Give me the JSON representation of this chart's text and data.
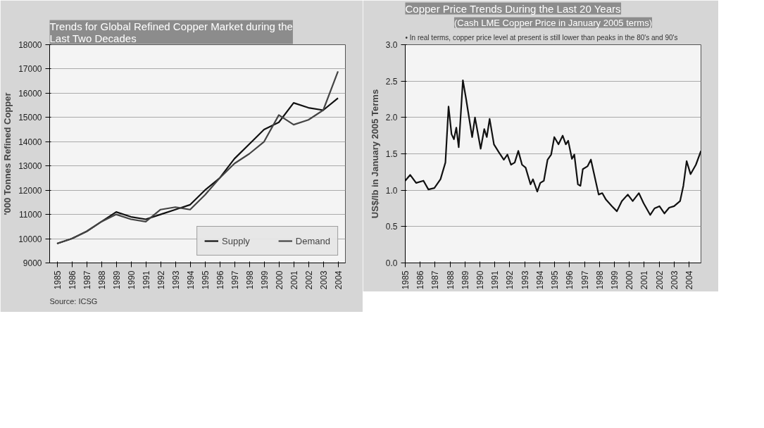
{
  "chart_data": [
    {
      "type": "line",
      "title": "Trends for Global Refined Copper Market during the Last Two Decades",
      "ylabel": "'000 Tonnes Refined Copper",
      "categories": [
        "1985",
        "1986",
        "1987",
        "1988",
        "1989",
        "1990",
        "1991",
        "1992",
        "1993",
        "1994",
        "1995",
        "1996",
        "1997",
        "1998",
        "1999",
        "2000",
        "2001",
        "2002",
        "2003",
        "2004"
      ],
      "series": [
        {
          "name": "Supply",
          "color": "#111111",
          "values": [
            9800,
            10000,
            10300,
            10700,
            11100,
            10900,
            10800,
            11000,
            11200,
            11400,
            12000,
            12500,
            13300,
            13900,
            14500,
            14800,
            15600,
            15400,
            15300,
            15800
          ]
        },
        {
          "name": "Demand",
          "color": "#444444",
          "values": [
            9800,
            10000,
            10300,
            10700,
            11000,
            10800,
            10700,
            11200,
            11300,
            11200,
            11800,
            12500,
            13100,
            13500,
            14000,
            15100,
            14700,
            14900,
            15300,
            16900
          ]
        }
      ],
      "ylim": [
        9000,
        18000
      ],
      "yticks": [
        9000,
        10000,
        11000,
        12000,
        13000,
        14000,
        15000,
        16000,
        17000,
        18000
      ],
      "grid": "y",
      "legend": "bottom right",
      "line_style": "solid",
      "annotations": [
        "Source: ICSG"
      ]
    },
    {
      "type": "line",
      "title": "Copper Price Trends During the Last 20 Years",
      "subtitle": "(Cash LME Copper Price in January 2005 terms)",
      "ylabel": "US$/lb in January 2005 Terms",
      "series": [
        {
          "color": "#111111",
          "x": [
            1985.0,
            1985.33,
            1985.73,
            1986.22,
            1986.55,
            1986.95,
            1987.36,
            1987.69,
            1987.9,
            1988.1,
            1988.26,
            1988.42,
            1988.58,
            1988.86,
            1989.07,
            1989.48,
            1989.67,
            1990.05,
            1990.29,
            1990.46,
            1990.65,
            1990.94,
            1991.27,
            1991.6,
            1991.84,
            1992.08,
            1992.33,
            1992.57,
            1992.82,
            1993.06,
            1993.39,
            1993.55,
            1993.84,
            1994.04,
            1994.28,
            1994.53,
            1994.77,
            1994.98,
            1995.26,
            1995.54,
            1995.75,
            1995.91,
            1996.16,
            1996.32,
            1996.56,
            1996.73,
            1996.89,
            1997.21,
            1997.43,
            1997.7,
            1997.95,
            1998.19,
            1998.44,
            1998.84,
            1999.17,
            1999.5,
            1999.9,
            2000.23,
            2000.64,
            2000.96,
            2001.4,
            2001.69,
            2002.02,
            2002.35,
            2002.67,
            2003.0,
            2003.4,
            2003.62,
            2003.84,
            2004.1,
            2004.46,
            2004.8
          ],
          "values": [
            1.13,
            1.21,
            1.1,
            1.13,
            1.01,
            1.03,
            1.15,
            1.38,
            2.15,
            1.77,
            1.7,
            1.86,
            1.59,
            2.51,
            2.26,
            1.73,
            2.0,
            1.57,
            1.84,
            1.73,
            1.98,
            1.63,
            1.52,
            1.42,
            1.49,
            1.35,
            1.38,
            1.54,
            1.35,
            1.31,
            1.08,
            1.15,
            0.98,
            1.1,
            1.13,
            1.42,
            1.49,
            1.73,
            1.63,
            1.75,
            1.63,
            1.68,
            1.43,
            1.49,
            1.08,
            1.06,
            1.29,
            1.33,
            1.42,
            1.17,
            0.94,
            0.96,
            0.87,
            0.78,
            0.71,
            0.85,
            0.94,
            0.85,
            0.96,
            0.82,
            0.66,
            0.75,
            0.78,
            0.68,
            0.76,
            0.78,
            0.85,
            1.06,
            1.4,
            1.22,
            1.35,
            1.54
          ]
        }
      ],
      "xlim": [
        1985,
        2004.8
      ],
      "xticks": [
        {
          "value": 1985,
          "label": "1985"
        },
        {
          "value": 1986,
          "label": "1986"
        },
        {
          "value": 1987,
          "label": "1987"
        },
        {
          "value": 1988,
          "label": "1988"
        },
        {
          "value": 1989,
          "label": "1989"
        },
        {
          "value": 1990,
          "label": "1990"
        },
        {
          "value": 1991,
          "label": "1991"
        },
        {
          "value": 1992,
          "label": "1992"
        },
        {
          "value": 1993,
          "label": "1993"
        },
        {
          "value": 1994,
          "label": "1994"
        },
        {
          "value": 1995,
          "label": "1995"
        },
        {
          "value": 1996,
          "label": "1996"
        },
        {
          "value": 1997,
          "label": "1997"
        },
        {
          "value": 1998,
          "label": "1998"
        },
        {
          "value": 1999,
          "label": "1999"
        },
        {
          "value": 2000,
          "label": "2000"
        },
        {
          "value": 2001,
          "label": "2001"
        },
        {
          "value": 2002,
          "label": "2002"
        },
        {
          "value": 2003,
          "label": "2003"
        },
        {
          "value": 2004,
          "label": "2004"
        }
      ],
      "ylim": [
        0,
        3
      ],
      "yticks": [
        {
          "value": 0,
          "label": "0.0"
        },
        {
          "value": 0.5,
          "label": "0.5"
        },
        {
          "value": 1,
          "label": "1.0"
        },
        {
          "value": 1.5,
          "label": "1.5"
        },
        {
          "value": 2,
          "label": "2.0"
        },
        {
          "value": 2.5,
          "label": "2.5"
        },
        {
          "value": 3,
          "label": "3.0"
        }
      ],
      "grid": "y",
      "line_style": "solid",
      "annotations": [
        "• In real terms, copper price level at present is still lower than peaks in the 80's and 90's"
      ]
    }
  ]
}
